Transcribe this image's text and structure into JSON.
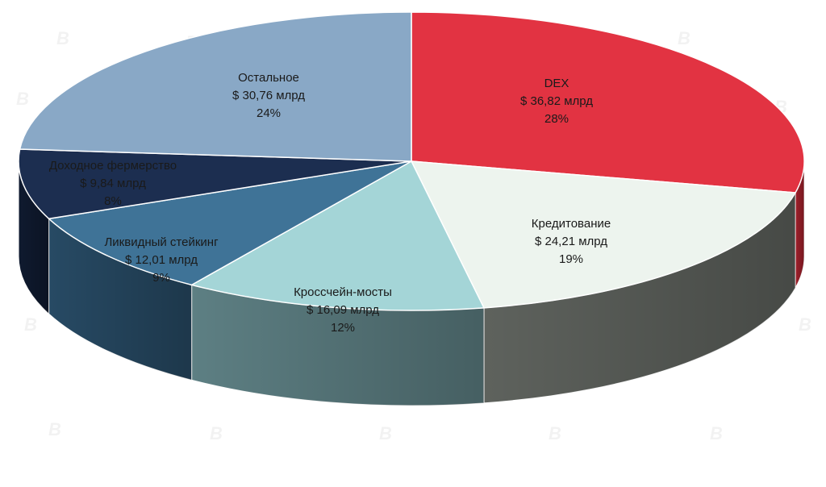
{
  "chart_data": {
    "type": "pie",
    "title": "",
    "unit": "млрд",
    "slices": [
      {
        "name": "DEX",
        "value_label": "$ 36,82 млрд",
        "value": 36.82,
        "percent": 28,
        "percent_label": "28%",
        "color": "#e23342",
        "side_color": "#9e1f2a",
        "text_color": "#ffffff"
      },
      {
        "name": "Кредитование",
        "value_label": "$ 24,21 млрд",
        "value": 24.21,
        "percent": 19,
        "percent_label": "19%",
        "color": "#edf4ee",
        "side_color": "#5e625d",
        "text_color": "#1a1a1a"
      },
      {
        "name": "Кроссчейн-мосты",
        "value_label": "$ 16,09 млрд",
        "value": 16.09,
        "percent": 12,
        "percent_label": "12%",
        "color": "#a4d5d7",
        "side_color": "#5d7f83",
        "text_color": "#1a1a1a"
      },
      {
        "name": "Ликвидный стейкинг",
        "value_label": "$ 12,01 млрд",
        "value": 12.01,
        "percent": 9,
        "percent_label": "9%",
        "color": "#3f7397",
        "side_color": "#274a64",
        "text_color": "#ffffff"
      },
      {
        "name": "Доходное фермерство",
        "value_label": "$ 9,84 млрд",
        "value": 9.84,
        "percent": 8,
        "percent_label": "8%",
        "color": "#1c2e50",
        "side_color": "#0f1a2f",
        "text_color": "#ffffff"
      },
      {
        "name": "Остальное",
        "value_label": "$ 30,76 млрд",
        "value": 30.76,
        "percent": 24,
        "percent_label": "24%",
        "color": "#89a8c6",
        "side_color": "#5a7590",
        "text_color": "#1a1a1a"
      }
    ]
  },
  "watermark": {
    "icon": "b-logo-icon"
  }
}
